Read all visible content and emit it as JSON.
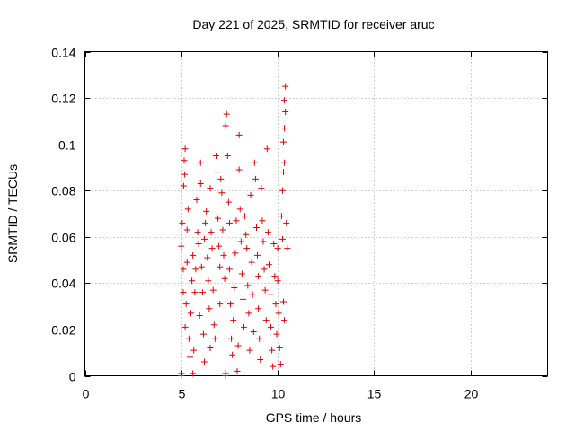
{
  "chart_data": {
    "type": "scatter",
    "title": "Day 221 of 2025, SRMTID for receiver aruc",
    "xlabel": "GPS time / hours",
    "ylabel": "SRMTID / TECUs",
    "xlim": [
      0,
      24
    ],
    "ylim": [
      0,
      0.14
    ],
    "xticks": [
      0,
      5,
      10,
      15,
      20
    ],
    "yticks": [
      0,
      0.02,
      0.04,
      0.06,
      0.08,
      0.1,
      0.12,
      0.14
    ],
    "xtick_labels": [
      "0",
      "5",
      "10",
      "15",
      "20"
    ],
    "ytick_labels": [
      "0",
      "0.02",
      "0.04",
      "0.06",
      "0.08",
      "0.1",
      "0.12",
      "0.14"
    ],
    "grid": true,
    "marker": "+",
    "series": [
      {
        "name": "SRMTID",
        "color": "#e00000",
        "points": [
          [
            5.0,
            0.0
          ],
          [
            5.0,
            0.001
          ],
          [
            7.3,
            0.0
          ],
          [
            7.3,
            0.001
          ],
          [
            5.0,
            0.056
          ],
          [
            5.05,
            0.066
          ],
          [
            5.1,
            0.046
          ],
          [
            5.12,
            0.082
          ],
          [
            5.15,
            0.093
          ],
          [
            5.2,
            0.098
          ],
          [
            5.18,
            0.087
          ],
          [
            5.1,
            0.036
          ],
          [
            5.2,
            0.021
          ],
          [
            5.25,
            0.031
          ],
          [
            5.3,
            0.049
          ],
          [
            5.3,
            0.063
          ],
          [
            5.35,
            0.072
          ],
          [
            5.4,
            0.016
          ],
          [
            5.45,
            0.008
          ],
          [
            5.5,
            0.027
          ],
          [
            5.55,
            0.041
          ],
          [
            5.6,
            0.052
          ],
          [
            5.6,
            0.001
          ],
          [
            5.65,
            0.011
          ],
          [
            5.7,
            0.036
          ],
          [
            5.75,
            0.046
          ],
          [
            5.8,
            0.076
          ],
          [
            5.85,
            0.062
          ],
          [
            5.9,
            0.057
          ],
          [
            5.95,
            0.026
          ],
          [
            6.0,
            0.083
          ],
          [
            6.0,
            0.092
          ],
          [
            6.05,
            0.047
          ],
          [
            6.1,
            0.036
          ],
          [
            6.15,
            0.018
          ],
          [
            6.2,
            0.006
          ],
          [
            6.2,
            0.059
          ],
          [
            6.25,
            0.066
          ],
          [
            6.3,
            0.071
          ],
          [
            6.35,
            0.051
          ],
          [
            6.4,
            0.041
          ],
          [
            6.45,
            0.029
          ],
          [
            6.5,
            0.012
          ],
          [
            6.5,
            0.081
          ],
          [
            6.55,
            0.062
          ],
          [
            6.6,
            0.055
          ],
          [
            6.65,
            0.037
          ],
          [
            6.7,
            0.022
          ],
          [
            6.75,
            0.016
          ],
          [
            6.8,
            0.095
          ],
          [
            6.85,
            0.088
          ],
          [
            6.9,
            0.068
          ],
          [
            6.95,
            0.056
          ],
          [
            7.0,
            0.047
          ],
          [
            7.0,
            0.031
          ],
          [
            7.05,
            0.085
          ],
          [
            7.1,
            0.079
          ],
          [
            7.15,
            0.063
          ],
          [
            7.2,
            0.052
          ],
          [
            7.25,
            0.042
          ],
          [
            7.3,
            0.108
          ],
          [
            7.35,
            0.113
          ],
          [
            7.4,
            0.095
          ],
          [
            7.45,
            0.075
          ],
          [
            7.5,
            0.066
          ],
          [
            7.5,
            0.046
          ],
          [
            7.55,
            0.031
          ],
          [
            7.6,
            0.016
          ],
          [
            7.65,
            0.009
          ],
          [
            7.7,
            0.024
          ],
          [
            7.75,
            0.038
          ],
          [
            7.8,
            0.053
          ],
          [
            7.85,
            0.067
          ],
          [
            7.9,
            0.002
          ],
          [
            7.95,
            0.013
          ],
          [
            8.0,
            0.104
          ],
          [
            8.0,
            0.089
          ],
          [
            8.05,
            0.072
          ],
          [
            8.1,
            0.058
          ],
          [
            8.15,
            0.044
          ],
          [
            8.2,
            0.033
          ],
          [
            8.25,
            0.021
          ],
          [
            8.3,
            0.069
          ],
          [
            8.35,
            0.061
          ],
          [
            8.4,
            0.055
          ],
          [
            8.45,
            0.039
          ],
          [
            8.5,
            0.027
          ],
          [
            8.55,
            0.011
          ],
          [
            8.6,
            0.078
          ],
          [
            8.65,
            0.049
          ],
          [
            8.7,
            0.035
          ],
          [
            8.75,
            0.019
          ],
          [
            8.8,
            0.092
          ],
          [
            8.85,
            0.085
          ],
          [
            8.9,
            0.064
          ],
          [
            8.95,
            0.052
          ],
          [
            9.0,
            0.043
          ],
          [
            9.0,
            0.029
          ],
          [
            9.05,
            0.016
          ],
          [
            9.1,
            0.007
          ],
          [
            9.15,
            0.081
          ],
          [
            9.2,
            0.067
          ],
          [
            9.25,
            0.058
          ],
          [
            9.3,
            0.046
          ],
          [
            9.35,
            0.037
          ],
          [
            9.4,
            0.024
          ],
          [
            9.45,
            0.098
          ],
          [
            9.5,
            0.062
          ],
          [
            9.55,
            0.048
          ],
          [
            9.6,
            0.035
          ],
          [
            9.65,
            0.021
          ],
          [
            9.7,
            0.011
          ],
          [
            9.75,
            0.004
          ],
          [
            9.8,
            0.057
          ],
          [
            9.85,
            0.043
          ],
          [
            9.9,
            0.031
          ],
          [
            9.95,
            0.018
          ],
          [
            10.0,
            0.055
          ],
          [
            10.0,
            0.041
          ],
          [
            10.05,
            0.027
          ],
          [
            10.1,
            0.012
          ],
          [
            10.15,
            0.005
          ],
          [
            10.2,
            0.069
          ],
          [
            10.25,
            0.059
          ],
          [
            10.3,
            0.032
          ],
          [
            10.35,
            0.024
          ],
          [
            10.25,
            0.08
          ],
          [
            10.3,
            0.088
          ],
          [
            10.35,
            0.092
          ],
          [
            10.3,
            0.101
          ],
          [
            10.35,
            0.107
          ],
          [
            10.4,
            0.114
          ],
          [
            10.35,
            0.119
          ],
          [
            10.4,
            0.125
          ],
          [
            10.45,
            0.066
          ],
          [
            10.5,
            0.055
          ]
        ]
      }
    ]
  }
}
